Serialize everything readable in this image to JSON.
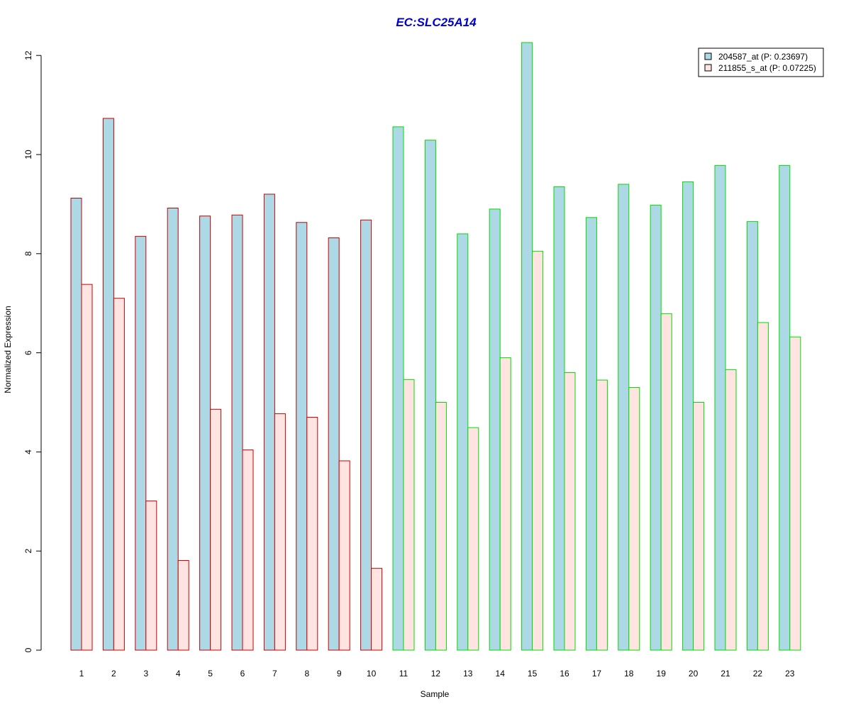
{
  "chart_data": {
    "type": "bar",
    "title": "EC:SLC25A14",
    "xlabel": "Sample",
    "ylabel": "Normalized Expression",
    "ylim": [
      0,
      12.3
    ],
    "yticks": [
      0,
      2,
      4,
      6,
      8,
      10,
      12
    ],
    "categories": [
      "1",
      "2",
      "3",
      "4",
      "5",
      "6",
      "7",
      "8",
      "9",
      "10",
      "11",
      "12",
      "13",
      "14",
      "15",
      "16",
      "17",
      "18",
      "19",
      "20",
      "21",
      "22",
      "23"
    ],
    "series": [
      {
        "name": "204587_at (P: 0.23697)",
        "fill": "#add8e6",
        "values": [
          9.12,
          10.73,
          8.35,
          8.92,
          8.76,
          8.78,
          9.2,
          8.63,
          8.32,
          8.68,
          10.56,
          10.29,
          8.4,
          8.9,
          12.26,
          9.35,
          8.73,
          9.4,
          8.98,
          9.45,
          9.78,
          8.65,
          9.78
        ]
      },
      {
        "name": "211855_s_at (P: 0.07225)",
        "fill": "#ffe4e1",
        "values": [
          7.38,
          7.1,
          3.01,
          1.81,
          4.86,
          4.04,
          4.77,
          4.7,
          3.82,
          1.65,
          5.46,
          5.0,
          4.49,
          5.9,
          8.05,
          5.6,
          5.45,
          5.3,
          6.79,
          5.0,
          5.66,
          6.61,
          6.32
        ]
      }
    ],
    "groups": [
      {
        "samples": [
          1,
          2,
          3,
          4,
          5,
          6,
          7,
          8,
          9,
          10
        ],
        "border": "#cc0000"
      },
      {
        "samples": [
          11,
          12,
          13,
          14,
          15,
          16,
          17,
          18,
          19,
          20,
          21,
          22,
          23
        ],
        "border": "#00dd00"
      }
    ],
    "legend_position": "top-right",
    "grid": false
  }
}
